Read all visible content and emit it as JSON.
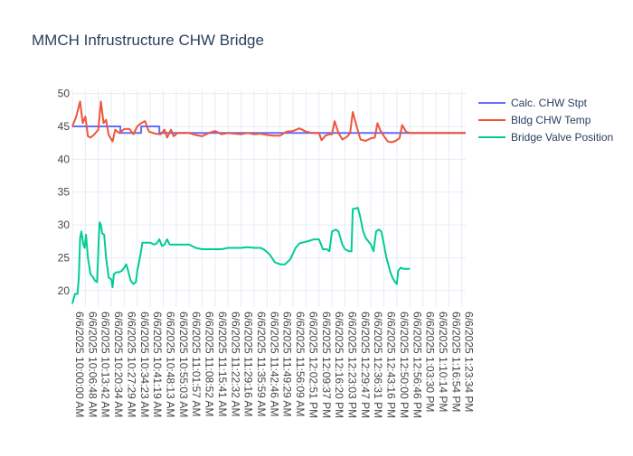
{
  "chart_data": {
    "type": "line",
    "title": "MMCH Infrustructure CHW Bridge",
    "xlabel": "",
    "ylabel": "",
    "ylim": [
      17.5,
      50.5
    ],
    "yticks": [
      20,
      25,
      30,
      35,
      40,
      45,
      50
    ],
    "grid": true,
    "legend_position": "top-right",
    "x_tick_labels": [
      "6/6/2025 10:00:00 AM",
      "6/6/2025 10:06:48 AM",
      "6/6/2025 10:13:42 AM",
      "6/6/2025 10:20:34 AM",
      "6/6/2025 10:27:29 AM",
      "6/6/2025 10:34:23 AM",
      "6/6/2025 10:41:19 AM",
      "6/6/2025 10:48:13 AM",
      "6/6/2025 10:55:03 AM",
      "6/6/2025 11:01:57 AM",
      "6/6/2025 11:08:52 AM",
      "6/6/2025 11:15:41 AM",
      "6/6/2025 11:22:32 AM",
      "6/6/2025 11:29:16 AM",
      "6/6/2025 11:35:59 AM",
      "6/6/2025 11:42:46 AM",
      "6/6/2025 11:49:29 AM",
      "6/6/2025 11:56:09 AM",
      "6/6/2025 12:02:51 PM",
      "6/6/2025 12:09:37 PM",
      "6/6/2025 12:16:20 PM",
      "6/6/2025 12:23:03 PM",
      "6/6/2025 12:29:47 PM",
      "6/6/2025 12:36:31 PM",
      "6/6/2025 12:43:16 PM",
      "6/6/2025 12:50:00 PM",
      "6/6/2025 12:56:46 PM",
      "6/6/2025 1:03:30 PM",
      "6/6/2025 1:10:14 PM",
      "6/6/2025 1:16:54 PM",
      "6/6/2025 1:23:34 PM"
    ],
    "series": [
      {
        "name": "Calc. CHW Stpt",
        "color": "#636efa",
        "points": [
          [
            0,
            45.0
          ],
          [
            3.7,
            45.0
          ],
          [
            3.7,
            44.0
          ],
          [
            5.3,
            44.0
          ],
          [
            5.3,
            45.0
          ],
          [
            6.7,
            45.0
          ],
          [
            6.7,
            44.0
          ],
          [
            30.3,
            44.0
          ]
        ]
      },
      {
        "name": "Bldg CHW Temp",
        "color": "#ef553b",
        "points": [
          [
            0,
            45.0
          ],
          [
            0.3,
            46.5
          ],
          [
            0.6,
            48.8
          ],
          [
            0.8,
            45.5
          ],
          [
            1.0,
            46.5
          ],
          [
            1.2,
            43.5
          ],
          [
            1.4,
            43.3
          ],
          [
            1.7,
            43.8
          ],
          [
            2.0,
            44.5
          ],
          [
            2.2,
            48.8
          ],
          [
            2.4,
            45.5
          ],
          [
            2.6,
            46.0
          ],
          [
            2.8,
            43.7
          ],
          [
            3.1,
            42.7
          ],
          [
            3.3,
            44.5
          ],
          [
            3.6,
            44.0
          ],
          [
            4.0,
            44.6
          ],
          [
            4.4,
            44.6
          ],
          [
            4.7,
            43.8
          ],
          [
            5.0,
            45.0
          ],
          [
            5.3,
            45.5
          ],
          [
            5.6,
            45.8
          ],
          [
            5.9,
            44.2
          ],
          [
            6.4,
            43.9
          ],
          [
            6.8,
            43.8
          ],
          [
            7.1,
            44.5
          ],
          [
            7.3,
            43.3
          ],
          [
            7.6,
            44.5
          ],
          [
            7.8,
            43.5
          ],
          [
            8.1,
            44.0
          ],
          [
            8.6,
            44.0
          ],
          [
            9.0,
            44.0
          ],
          [
            9.5,
            43.7
          ],
          [
            10.0,
            43.5
          ],
          [
            10.5,
            44.0
          ],
          [
            11.0,
            44.3
          ],
          [
            11.5,
            43.8
          ],
          [
            12.0,
            44.0
          ],
          [
            12.5,
            43.9
          ],
          [
            13.0,
            43.8
          ],
          [
            13.5,
            44.0
          ],
          [
            14.0,
            43.8
          ],
          [
            14.5,
            43.9
          ],
          [
            15.0,
            43.7
          ],
          [
            15.5,
            43.6
          ],
          [
            16.0,
            43.6
          ],
          [
            16.5,
            44.2
          ],
          [
            17.0,
            44.3
          ],
          [
            17.5,
            44.7
          ],
          [
            18.0,
            44.2
          ],
          [
            18.5,
            44.0
          ],
          [
            19.0,
            44.0
          ],
          [
            19.2,
            42.9
          ],
          [
            19.5,
            43.6
          ],
          [
            19.8,
            43.8
          ],
          [
            20.0,
            43.8
          ],
          [
            20.2,
            45.8
          ],
          [
            20.5,
            44.0
          ],
          [
            20.8,
            43.0
          ],
          [
            21.2,
            43.5
          ],
          [
            21.4,
            44.0
          ],
          [
            21.6,
            47.2
          ],
          [
            21.9,
            45.0
          ],
          [
            22.2,
            43.0
          ],
          [
            22.6,
            42.8
          ],
          [
            23.0,
            43.2
          ],
          [
            23.3,
            43.3
          ],
          [
            23.5,
            45.5
          ],
          [
            23.7,
            44.5
          ],
          [
            24.0,
            43.5
          ],
          [
            24.3,
            42.7
          ],
          [
            24.6,
            42.6
          ],
          [
            24.9,
            42.8
          ],
          [
            25.2,
            43.2
          ],
          [
            25.4,
            45.2
          ],
          [
            25.7,
            44.2
          ],
          [
            26.0,
            44.0
          ],
          [
            30.3,
            44.0
          ]
        ]
      },
      {
        "name": "Bridge Valve Position",
        "color": "#00cc96",
        "points": [
          [
            0,
            18.0
          ],
          [
            0.2,
            19.5
          ],
          [
            0.4,
            19.5
          ],
          [
            0.5,
            22.0
          ],
          [
            0.6,
            28.0
          ],
          [
            0.7,
            29.0
          ],
          [
            0.85,
            27.0
          ],
          [
            0.95,
            26.5
          ],
          [
            1.05,
            28.5
          ],
          [
            1.2,
            25.0
          ],
          [
            1.4,
            22.5
          ],
          [
            1.6,
            22.0
          ],
          [
            1.75,
            21.5
          ],
          [
            1.9,
            21.3
          ],
          [
            2.0,
            26.0
          ],
          [
            2.1,
            30.4
          ],
          [
            2.2,
            30.0
          ],
          [
            2.3,
            28.7
          ],
          [
            2.45,
            28.5
          ],
          [
            2.6,
            25.0
          ],
          [
            2.8,
            22.0
          ],
          [
            3.0,
            21.7
          ],
          [
            3.1,
            20.5
          ],
          [
            3.2,
            22.5
          ],
          [
            3.4,
            22.8
          ],
          [
            3.6,
            22.8
          ],
          [
            3.8,
            23.0
          ],
          [
            4.0,
            23.5
          ],
          [
            4.15,
            24.0
          ],
          [
            4.3,
            23.0
          ],
          [
            4.5,
            21.5
          ],
          [
            4.7,
            21.0
          ],
          [
            4.9,
            21.3
          ],
          [
            5.0,
            23.0
          ],
          [
            5.2,
            25.0
          ],
          [
            5.4,
            27.3
          ],
          [
            5.7,
            27.3
          ],
          [
            6.0,
            27.3
          ],
          [
            6.3,
            27.0
          ],
          [
            6.5,
            27.2
          ],
          [
            6.7,
            27.8
          ],
          [
            6.9,
            26.8
          ],
          [
            7.1,
            27.0
          ],
          [
            7.3,
            27.8
          ],
          [
            7.5,
            27.0
          ],
          [
            8.0,
            27.0
          ],
          [
            8.5,
            27.0
          ],
          [
            9.0,
            27.0
          ],
          [
            9.5,
            26.5
          ],
          [
            10.0,
            26.3
          ],
          [
            10.5,
            26.3
          ],
          [
            11.0,
            26.3
          ],
          [
            11.5,
            26.3
          ],
          [
            12.0,
            26.5
          ],
          [
            12.5,
            26.5
          ],
          [
            13.0,
            26.5
          ],
          [
            13.5,
            26.6
          ],
          [
            14.0,
            26.5
          ],
          [
            14.5,
            26.5
          ],
          [
            14.8,
            26.2
          ],
          [
            15.2,
            25.5
          ],
          [
            15.6,
            24.3
          ],
          [
            16.0,
            24.0
          ],
          [
            16.4,
            24.0
          ],
          [
            16.8,
            24.8
          ],
          [
            17.2,
            26.5
          ],
          [
            17.5,
            27.2
          ],
          [
            17.9,
            27.4
          ],
          [
            18.3,
            27.6
          ],
          [
            18.6,
            27.8
          ],
          [
            19.0,
            27.8
          ],
          [
            19.3,
            26.3
          ],
          [
            19.6,
            26.3
          ],
          [
            19.8,
            26.0
          ],
          [
            20.0,
            29.0
          ],
          [
            20.3,
            29.3
          ],
          [
            20.5,
            29.0
          ],
          [
            20.8,
            27.0
          ],
          [
            21.0,
            26.3
          ],
          [
            21.3,
            26.0
          ],
          [
            21.5,
            26.0
          ],
          [
            21.6,
            32.4
          ],
          [
            22.0,
            32.6
          ],
          [
            22.2,
            31.0
          ],
          [
            22.4,
            29.0
          ],
          [
            22.6,
            28.0
          ],
          [
            22.8,
            27.5
          ],
          [
            23.0,
            27.0
          ],
          [
            23.2,
            26.0
          ],
          [
            23.4,
            29.0
          ],
          [
            23.6,
            29.3
          ],
          [
            23.8,
            29.0
          ],
          [
            24.0,
            27.0
          ],
          [
            24.2,
            25.0
          ],
          [
            24.5,
            22.8
          ],
          [
            24.7,
            21.8
          ],
          [
            24.9,
            21.2
          ],
          [
            25.0,
            21.0
          ],
          [
            25.1,
            23.0
          ],
          [
            25.3,
            23.5
          ],
          [
            25.5,
            23.3
          ],
          [
            26.0,
            23.3
          ]
        ]
      }
    ]
  }
}
